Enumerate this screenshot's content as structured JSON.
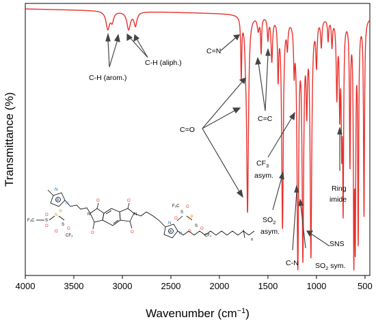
{
  "chart_data": {
    "type": "line",
    "xlabel": "Wavenumber (cm",
    "xlabel_sup": "−1",
    "xlabel_tail": ")",
    "ylabel": "Transmittance (%)",
    "xlim": [
      4000,
      450
    ],
    "ylim": [
      0,
      100
    ],
    "x_ticks": [
      4000,
      3500,
      3000,
      2500,
      2000,
      1500,
      1000,
      500
    ],
    "x_tick_labels": [
      "4000",
      "3500",
      "3000",
      "2500",
      "2000",
      "1500",
      "1000",
      "500"
    ],
    "grid": false,
    "line_color": "#e8302c",
    "baseline": 98,
    "peaks": [
      {
        "x": 3150,
        "depth": 6.5,
        "width": 22
      },
      {
        "x": 3105,
        "depth": 3.5,
        "width": 18
      },
      {
        "x": 2935,
        "depth": 6.5,
        "width": 22
      },
      {
        "x": 2865,
        "depth": 5.0,
        "width": 18
      },
      {
        "x": 1775,
        "depth": 22,
        "width": 6
      },
      {
        "x": 1730,
        "depth": 8,
        "width": 10
      },
      {
        "x": 1710,
        "depth": 71,
        "width": 11
      },
      {
        "x": 1600,
        "depth": 5,
        "width": 12
      },
      {
        "x": 1570,
        "depth": 13,
        "width": 6
      },
      {
        "x": 1500,
        "depth": 8,
        "width": 8
      },
      {
        "x": 1460,
        "depth": 16,
        "width": 9
      },
      {
        "x": 1395,
        "depth": 21,
        "width": 7
      },
      {
        "x": 1350,
        "depth": 77,
        "width": 10
      },
      {
        "x": 1300,
        "depth": 9,
        "width": 8
      },
      {
        "x": 1230,
        "depth": 16,
        "width": 7
      },
      {
        "x": 1192,
        "depth": 89,
        "width": 10
      },
      {
        "x": 1140,
        "depth": 85,
        "width": 10
      },
      {
        "x": 1100,
        "depth": 28,
        "width": 8
      },
      {
        "x": 1057,
        "depth": 86,
        "width": 10
      },
      {
        "x": 1000,
        "depth": 16,
        "width": 8
      },
      {
        "x": 950,
        "depth": 10,
        "width": 8
      },
      {
        "x": 880,
        "depth": 8,
        "width": 7
      },
      {
        "x": 840,
        "depth": 10,
        "width": 7
      },
      {
        "x": 790,
        "depth": 28,
        "width": 8
      },
      {
        "x": 760,
        "depth": 32,
        "width": 7
      },
      {
        "x": 740,
        "depth": 40,
        "width": 6
      },
      {
        "x": 725,
        "depth": 66,
        "width": 6
      },
      {
        "x": 655,
        "depth": 52,
        "width": 6
      },
      {
        "x": 615,
        "depth": 80,
        "width": 6
      },
      {
        "x": 600,
        "depth": 73,
        "width": 6
      },
      {
        "x": 570,
        "depth": 79,
        "width": 6
      },
      {
        "x": 510,
        "depth": 72,
        "width": 6
      }
    ],
    "annotations": [
      {
        "text": "C-H (arom.)",
        "sub": "",
        "tail": ""
      },
      {
        "text": "C-H (aliph.)",
        "sub": "",
        "tail": ""
      },
      {
        "text": "C=N",
        "sub": "",
        "tail": ""
      },
      {
        "text": "C=C",
        "sub": "",
        "tail": ""
      },
      {
        "text": "C=O",
        "sub": "",
        "tail": ""
      },
      {
        "text": "CF",
        "sub": "3",
        "tail": ""
      },
      {
        "text": "asym.",
        "sub": "",
        "tail": ""
      },
      {
        "text": "Ring",
        "sub": "",
        "tail": ""
      },
      {
        "text": "imide",
        "sub": "",
        "tail": ""
      },
      {
        "text": "SO",
        "sub": "2",
        "tail": ""
      },
      {
        "text": "asym.",
        "sub": "",
        "tail": ""
      },
      {
        "text": "C-N",
        "sub": "",
        "tail": ""
      },
      {
        "text": "SO",
        "sub": "2",
        "tail": " sym."
      },
      {
        "text": "SNS",
        "sub": "",
        "tail": ""
      }
    ]
  },
  "molecule": {
    "labels": [
      "N",
      "N",
      "F₃C",
      "S",
      "O",
      "O",
      "N",
      "S",
      "CF₃",
      "O",
      "O",
      "O",
      "O",
      "O",
      "O",
      "N",
      "N",
      "F₃C",
      "S",
      "O",
      "O",
      "N",
      "S",
      "CF₃",
      "O",
      "O",
      "N",
      "N",
      "n"
    ],
    "charges": [
      "⊕",
      "⊖",
      "⊖",
      "⊕"
    ]
  }
}
